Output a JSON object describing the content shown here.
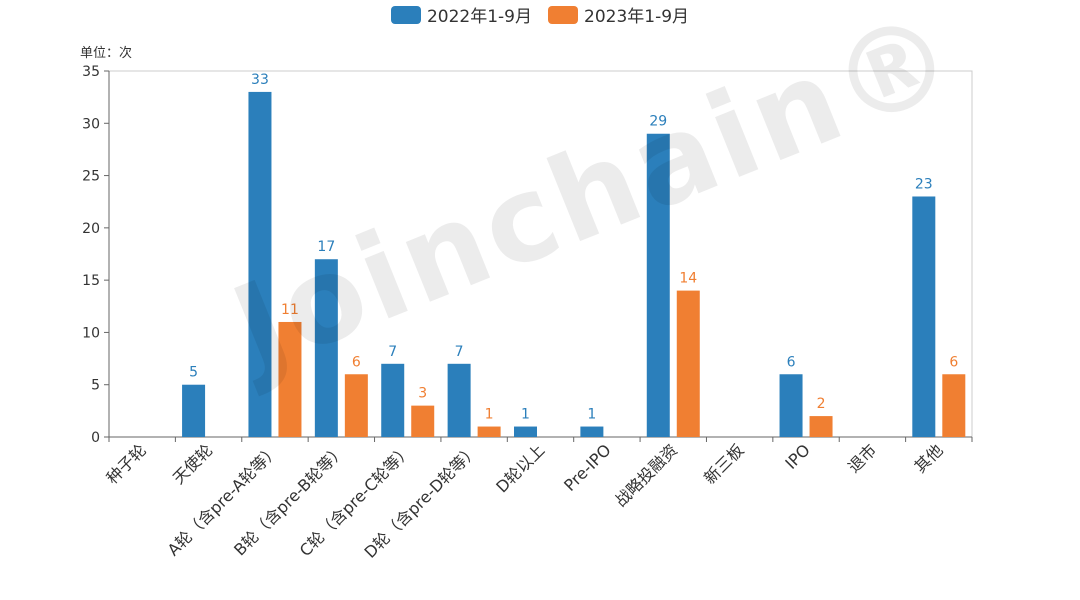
{
  "chart_data": {
    "type": "bar",
    "categories": [
      "种子轮",
      "天使轮",
      "A轮（含pre-A轮等）",
      "B轮（含pre-B轮等）",
      "C轮（含pre-C轮等）",
      "D轮（含pre-D轮等）",
      "D轮以上",
      "Pre-IPO",
      "战略投融资",
      "新三板",
      "IPO",
      "退市",
      "其他"
    ],
    "series": [
      {
        "name": "2022年1-9月",
        "color": "#2b7fbb",
        "values": [
          0,
          5,
          33,
          17,
          7,
          7,
          1,
          1,
          29,
          0,
          6,
          0,
          23
        ]
      },
      {
        "name": "2023年1-9月",
        "color": "#f07f32",
        "values": [
          0,
          0,
          11,
          6,
          3,
          1,
          0,
          0,
          14,
          0,
          2,
          0,
          6
        ]
      }
    ],
    "ylim": [
      0,
      35
    ],
    "yticks": [
      0,
      5,
      10,
      15,
      20,
      25,
      30,
      35
    ],
    "ylabel": "单位：次",
    "legend_position": "top-center"
  },
  "watermark": "Joinchain®"
}
